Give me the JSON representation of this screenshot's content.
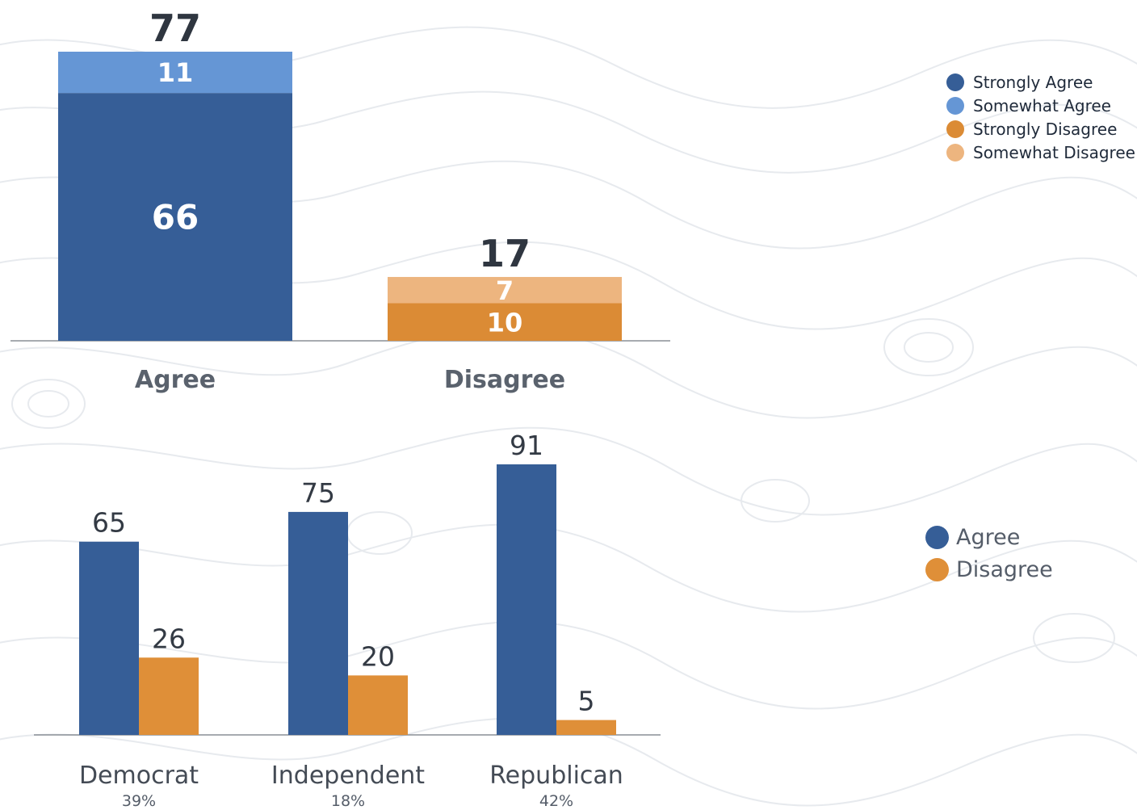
{
  "colors": {
    "strongly_agree": "#365e97",
    "somewhat_agree": "#6596d5",
    "strongly_disagree": "#db8b35",
    "somewhat_disagree": "#edb57f",
    "agree": "#365e97",
    "disagree": "#df8f38"
  },
  "chart_data": [
    {
      "type": "bar",
      "stacked": true,
      "categories": [
        "Agree",
        "Disagree"
      ],
      "totals": [
        77,
        17
      ],
      "series": [
        {
          "name": "Strongly Agree",
          "values": [
            66,
            null
          ]
        },
        {
          "name": "Somewhat Agree",
          "values": [
            11,
            null
          ]
        },
        {
          "name": "Strongly Disagree",
          "values": [
            null,
            10
          ]
        },
        {
          "name": "Somewhat Disagree",
          "values": [
            null,
            7
          ]
        }
      ],
      "ylim": [
        0,
        77
      ],
      "grid": false,
      "legend_position": "top-right"
    },
    {
      "type": "bar",
      "categories": [
        "Democrat",
        "Independent",
        "Republican"
      ],
      "category_shares": [
        "39%",
        "18%",
        "42%"
      ],
      "series": [
        {
          "name": "Agree",
          "values": [
            65,
            75,
            91
          ]
        },
        {
          "name": "Disagree",
          "values": [
            26,
            20,
            5
          ]
        }
      ],
      "ylim": [
        0,
        91
      ],
      "grid": false,
      "legend_position": "right"
    }
  ],
  "legend_top": {
    "items": [
      {
        "label": "Strongly Agree",
        "color": "#365e97"
      },
      {
        "label": "Somewhat Agree",
        "color": "#6596d5"
      },
      {
        "label": "Strongly Disagree",
        "color": "#db8b35"
      },
      {
        "label": "Somewhat Disagree",
        "color": "#edb57f"
      }
    ]
  },
  "legend_bottom": {
    "items": [
      {
        "label": "Agree",
        "color": "#365e97"
      },
      {
        "label": "Disagree",
        "color": "#df8f38"
      }
    ]
  }
}
